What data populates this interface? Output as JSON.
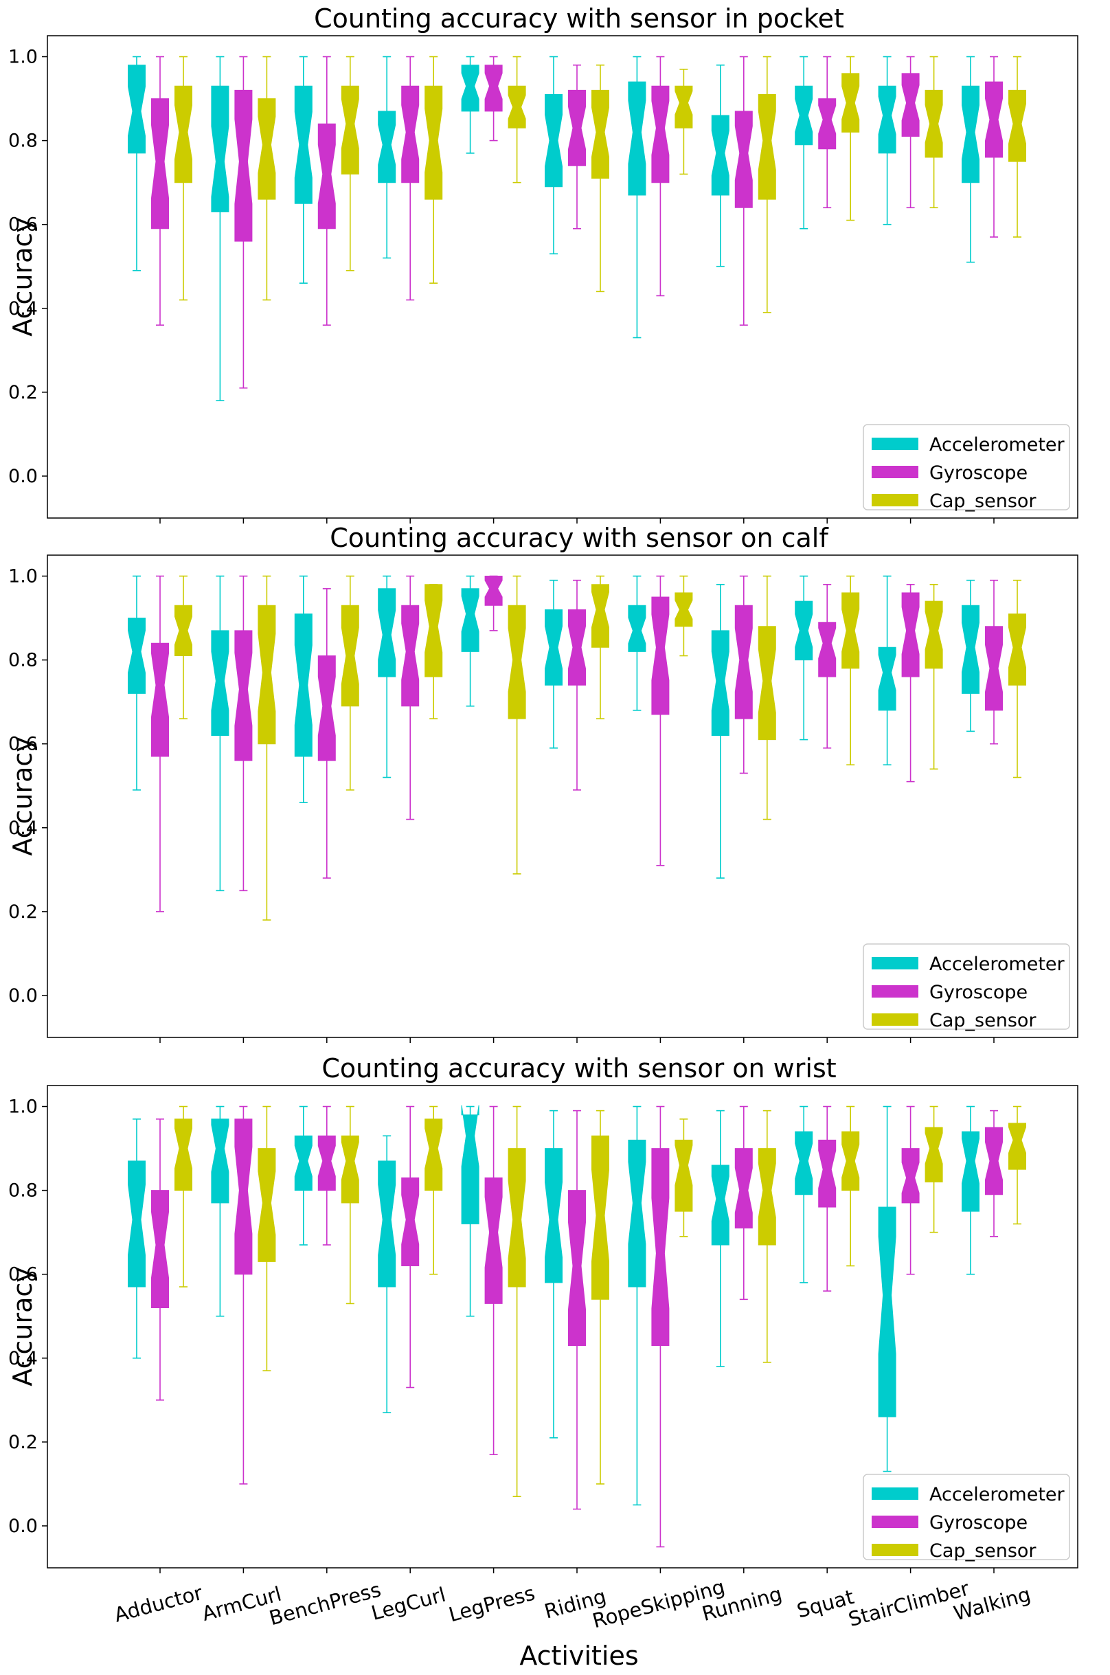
{
  "figure": {
    "xlabel": "Activities",
    "categories": [
      "Adductor",
      "ArmCurl",
      "BenchPress",
      "LegCurl",
      "LegPress",
      "Riding",
      "RopeSkipping",
      "Running",
      "Squat",
      "StairClimber",
      "Walking"
    ],
    "legend": [
      {
        "name": "Accelerometer",
        "color": "#00cccc"
      },
      {
        "name": "Gyroscope",
        "color": "#cc33cc"
      },
      {
        "name": "Cap_sensor",
        "color": "#cccc00"
      }
    ]
  },
  "chart_data": [
    {
      "type": "boxplot",
      "title": "Counting accuracy with sensor in pocket",
      "ylabel": "Accuracy",
      "ylim": [
        -0.1,
        1.05
      ],
      "yticks": [
        "0.0",
        "0.2",
        "0.4",
        "0.6",
        "0.8",
        "1.0"
      ],
      "legend_position": "bottom-right",
      "series": [
        {
          "name": "Accelerometer",
          "boxes": [
            [
              0.49,
              0.77,
              0.87,
              0.98,
              1.0
            ],
            [
              0.18,
              0.63,
              0.75,
              0.93,
              1.0
            ],
            [
              0.46,
              0.65,
              0.79,
              0.93,
              1.0
            ],
            [
              0.52,
              0.7,
              0.79,
              0.87,
              1.0
            ],
            [
              0.77,
              0.87,
              0.93,
              0.98,
              1.0
            ],
            [
              0.53,
              0.69,
              0.8,
              0.91,
              1.0
            ],
            [
              0.33,
              0.67,
              0.82,
              0.94,
              1.0
            ],
            [
              0.5,
              0.67,
              0.77,
              0.86,
              0.98
            ],
            [
              0.59,
              0.79,
              0.86,
              0.93,
              1.0
            ],
            [
              0.6,
              0.77,
              0.86,
              0.93,
              1.0
            ],
            [
              0.51,
              0.7,
              0.82,
              0.93,
              1.0
            ]
          ]
        },
        {
          "name": "Gyroscope",
          "boxes": [
            [
              0.36,
              0.59,
              0.75,
              0.9,
              1.0
            ],
            [
              0.21,
              0.56,
              0.75,
              0.92,
              1.0
            ],
            [
              0.36,
              0.59,
              0.72,
              0.84,
              1.0
            ],
            [
              0.42,
              0.7,
              0.82,
              0.93,
              1.0
            ],
            [
              0.8,
              0.87,
              0.93,
              0.98,
              1.0
            ],
            [
              0.59,
              0.74,
              0.83,
              0.92,
              0.98
            ],
            [
              0.43,
              0.7,
              0.83,
              0.93,
              1.0
            ],
            [
              0.36,
              0.64,
              0.77,
              0.87,
              1.0
            ],
            [
              0.64,
              0.78,
              0.85,
              0.9,
              1.0
            ],
            [
              0.64,
              0.81,
              0.89,
              0.96,
              1.0
            ],
            [
              0.57,
              0.76,
              0.85,
              0.94,
              1.0
            ]
          ]
        },
        {
          "name": "Cap_sensor",
          "boxes": [
            [
              0.42,
              0.7,
              0.82,
              0.93,
              1.0
            ],
            [
              0.42,
              0.66,
              0.79,
              0.9,
              1.0
            ],
            [
              0.49,
              0.72,
              0.84,
              0.93,
              1.0
            ],
            [
              0.46,
              0.66,
              0.8,
              0.93,
              1.0
            ],
            [
              0.7,
              0.83,
              0.88,
              0.93,
              1.0
            ],
            [
              0.44,
              0.71,
              0.82,
              0.92,
              0.98
            ],
            [
              0.72,
              0.83,
              0.89,
              0.93,
              0.97
            ],
            [
              0.39,
              0.66,
              0.8,
              0.91,
              1.0
            ],
            [
              0.61,
              0.82,
              0.89,
              0.96,
              1.0
            ],
            [
              0.64,
              0.76,
              0.84,
              0.92,
              1.0
            ],
            [
              0.57,
              0.75,
              0.84,
              0.92,
              1.0
            ]
          ]
        }
      ]
    },
    {
      "type": "boxplot",
      "title": "Counting accuracy with sensor on calf",
      "ylabel": "Accuracy",
      "ylim": [
        -0.1,
        1.05
      ],
      "yticks": [
        "0.0",
        "0.2",
        "0.4",
        "0.6",
        "0.8",
        "1.0"
      ],
      "legend_position": "bottom-right",
      "series": [
        {
          "name": "Accelerometer",
          "boxes": [
            [
              0.49,
              0.72,
              0.82,
              0.9,
              1.0
            ],
            [
              0.25,
              0.62,
              0.75,
              0.87,
              1.0
            ],
            [
              0.46,
              0.57,
              0.74,
              0.91,
              1.0
            ],
            [
              0.52,
              0.76,
              0.86,
              0.97,
              1.0
            ],
            [
              0.69,
              0.82,
              0.91,
              0.97,
              1.0
            ],
            [
              0.59,
              0.74,
              0.83,
              0.92,
              0.99
            ],
            [
              0.68,
              0.82,
              0.87,
              0.93,
              1.0
            ],
            [
              0.28,
              0.62,
              0.75,
              0.87,
              0.98
            ],
            [
              0.61,
              0.8,
              0.87,
              0.94,
              1.0
            ],
            [
              0.55,
              0.68,
              0.77,
              0.83,
              1.0
            ],
            [
              0.63,
              0.72,
              0.83,
              0.93,
              0.99
            ]
          ]
        },
        {
          "name": "Gyroscope",
          "boxes": [
            [
              0.2,
              0.57,
              0.74,
              0.84,
              1.0
            ],
            [
              0.25,
              0.56,
              0.73,
              0.87,
              1.0
            ],
            [
              0.28,
              0.56,
              0.69,
              0.81,
              0.97
            ],
            [
              0.42,
              0.69,
              0.82,
              0.93,
              1.0
            ],
            [
              0.87,
              0.93,
              0.97,
              1.0,
              1.0
            ],
            [
              0.49,
              0.74,
              0.83,
              0.92,
              0.99
            ],
            [
              0.31,
              0.67,
              0.83,
              0.95,
              1.0
            ],
            [
              0.53,
              0.66,
              0.8,
              0.93,
              1.0
            ],
            [
              0.59,
              0.76,
              0.84,
              0.89,
              0.98
            ],
            [
              0.51,
              0.76,
              0.87,
              0.96,
              0.98
            ],
            [
              0.6,
              0.68,
              0.78,
              0.88,
              0.99
            ]
          ]
        },
        {
          "name": "Cap_sensor",
          "boxes": [
            [
              0.66,
              0.81,
              0.87,
              0.93,
              1.0
            ],
            [
              0.18,
              0.6,
              0.77,
              0.93,
              1.0
            ],
            [
              0.49,
              0.69,
              0.81,
              0.93,
              1.0
            ],
            [
              0.66,
              0.76,
              0.88,
              0.98,
              0.98
            ],
            [
              0.29,
              0.66,
              0.8,
              0.93,
              1.0
            ],
            [
              0.66,
              0.83,
              0.92,
              0.98,
              1.0
            ],
            [
              0.81,
              0.88,
              0.92,
              0.96,
              1.0
            ],
            [
              0.42,
              0.61,
              0.75,
              0.88,
              1.0
            ],
            [
              0.55,
              0.78,
              0.87,
              0.96,
              1.0
            ],
            [
              0.54,
              0.78,
              0.87,
              0.94,
              0.98
            ],
            [
              0.52,
              0.74,
              0.83,
              0.91,
              0.99
            ]
          ]
        }
      ]
    },
    {
      "type": "boxplot",
      "title": "Counting accuracy with sensor on wrist",
      "ylabel": "Accuracy",
      "ylim": [
        -0.1,
        1.05
      ],
      "yticks": [
        "0.0",
        "0.2",
        "0.4",
        "0.6",
        "0.8",
        "1.0"
      ],
      "legend_position": "bottom-right",
      "series": [
        {
          "name": "Accelerometer",
          "boxes": [
            [
              0.4,
              0.57,
              0.73,
              0.87,
              0.97
            ],
            [
              0.5,
              0.77,
              0.9,
              0.97,
              1.0
            ],
            [
              0.67,
              0.8,
              0.87,
              0.93,
              1.0
            ],
            [
              0.27,
              0.57,
              0.73,
              0.87,
              0.93
            ],
            [
              0.5,
              0.72,
              0.93,
              0.98,
              1.0
            ],
            [
              0.21,
              0.58,
              0.73,
              0.9,
              0.99
            ],
            [
              0.05,
              0.57,
              0.77,
              0.92,
              1.0
            ],
            [
              0.38,
              0.67,
              0.78,
              0.86,
              0.99
            ],
            [
              0.58,
              0.79,
              0.87,
              0.94,
              1.0
            ],
            [
              0.13,
              0.26,
              0.55,
              0.76,
              1.0
            ],
            [
              0.6,
              0.75,
              0.87,
              0.94,
              1.0
            ]
          ]
        },
        {
          "name": "Gyroscope",
          "boxes": [
            [
              0.3,
              0.52,
              0.67,
              0.8,
              0.97
            ],
            [
              0.1,
              0.6,
              0.8,
              0.97,
              1.0
            ],
            [
              0.67,
              0.8,
              0.87,
              0.93,
              1.0
            ],
            [
              0.33,
              0.62,
              0.73,
              0.83,
              1.0
            ],
            [
              0.17,
              0.53,
              0.7,
              0.83,
              1.0
            ],
            [
              0.04,
              0.43,
              0.62,
              0.8,
              0.99
            ],
            [
              -0.05,
              0.43,
              0.65,
              0.9,
              1.0
            ],
            [
              0.54,
              0.71,
              0.8,
              0.9,
              1.0
            ],
            [
              0.56,
              0.76,
              0.85,
              0.92,
              1.0
            ],
            [
              0.6,
              0.77,
              0.83,
              0.9,
              1.0
            ],
            [
              0.69,
              0.79,
              0.87,
              0.95,
              0.99
            ]
          ]
        },
        {
          "name": "Cap_sensor",
          "boxes": [
            [
              0.57,
              0.8,
              0.9,
              0.97,
              1.0
            ],
            [
              0.37,
              0.63,
              0.77,
              0.9,
              1.0
            ],
            [
              0.53,
              0.77,
              0.87,
              0.93,
              1.0
            ],
            [
              0.6,
              0.8,
              0.9,
              0.97,
              1.0
            ],
            [
              0.07,
              0.57,
              0.73,
              0.9,
              1.0
            ],
            [
              0.1,
              0.54,
              0.74,
              0.93,
              0.99
            ],
            [
              0.69,
              0.75,
              0.86,
              0.92,
              0.97
            ],
            [
              0.39,
              0.67,
              0.8,
              0.9,
              0.99
            ],
            [
              0.62,
              0.8,
              0.87,
              0.94,
              1.0
            ],
            [
              0.7,
              0.82,
              0.9,
              0.95,
              1.0
            ],
            [
              0.72,
              0.85,
              0.92,
              0.96,
              1.0
            ]
          ]
        }
      ]
    }
  ]
}
